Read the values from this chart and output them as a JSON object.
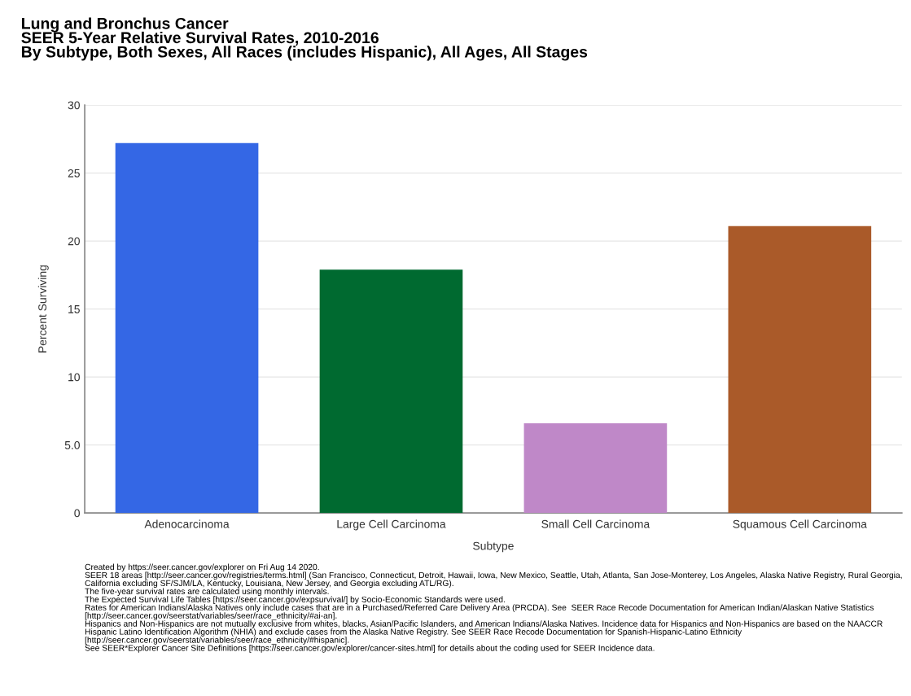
{
  "chart_data": {
    "type": "bar",
    "title": "Lung and Bronchus Cancer",
    "subtitle": "SEER 5-Year Relative Survival Rates, 2010-2016\nBy Subtype, Both Sexes, All Races (includes Hispanic), All Ages, All Stages",
    "xlabel": "Subtype",
    "ylabel": "Percent Surviving",
    "categories": [
      "Adenocarcinoma",
      "Large Cell Carcinoma",
      "Small Cell Carcinoma",
      "Squamous Cell Carcinoma"
    ],
    "values": [
      27.2,
      17.9,
      6.6,
      21.1
    ],
    "colors": [
      "#3467e5",
      "#006a30",
      "#bf88c8",
      "#aa5a29"
    ],
    "ylim": [
      0,
      30
    ],
    "yticks": [
      0,
      {
        "value": 5,
        "label": "5.0"
      },
      10,
      15,
      20,
      25,
      30
    ],
    "grid": "y",
    "annotations": [
      "Created by https://seer.cancer.gov/explorer on Fri Aug 14 2020.",
      "SEER 18 areas [http://seer.cancer.gov/registries/terms.html] (San Francisco, Connecticut, Detroit, Hawaii, Iowa, New Mexico, Seattle, Utah, Atlanta, San Jose-Monterey, Los Angeles, Alaska Native Registry, Rural Georgia, California excluding SF/SJM/LA, Kentucky, Louisiana, New Jersey, and Georgia excluding ATL/RG).",
      "The five-year survival rates are calculated using monthly intervals.",
      "The Expected Survival Life Tables [https://seer.cancer.gov/expsurvival/] by Socio-Economic Standards were used.",
      "Rates for American Indians/Alaska Natives only include cases that are in a Purchased/Referred Care Delivery Area (PRCDA). See  SEER Race Recode Documentation for American Indian/Alaskan Native Statistics [http://seer.cancer.gov/seerstat/variables/seer/race_ethnicity/#ai-an].",
      "Hispanics and Non-Hispanics are not mutually exclusive from whites, blacks, Asian/Pacific Islanders, and American Indians/Alaska Natives. Incidence data for Hispanics and Non-Hispanics are based on the NAACCR Hispanic Latino Identification Algorithm (NHIA) and exclude cases from the Alaska Native Registry. See SEER Race Recode Documentation for Spanish-Hispanic-Latino Ethnicity [http://seer.cancer.gov/seerstat/variables/seer/race_ethnicity/#hispanic].",
      "See SEER*Explorer Cancer Site Definitions [https://seer.cancer.gov/explorer/cancer-sites.html] for details about the coding used for SEER Incidence data."
    ]
  }
}
